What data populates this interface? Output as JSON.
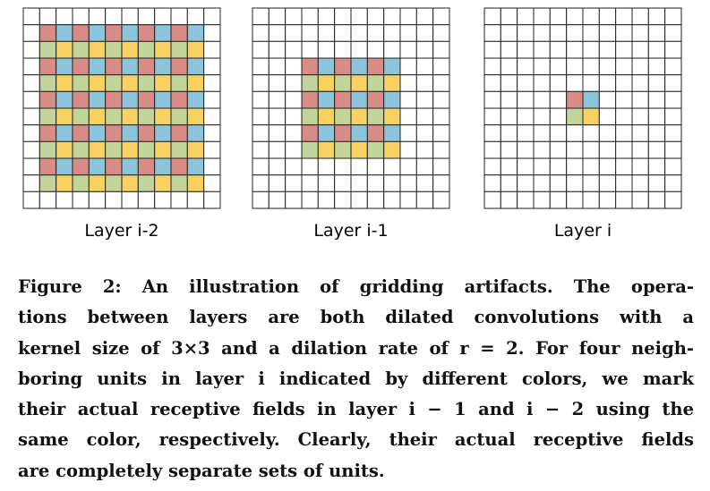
{
  "colors": {
    "red": "#d98b86",
    "blue": "#8cc5db",
    "green": "#c3d49a",
    "yellow": "#f7d161",
    "grid_line": "#222222",
    "empty": "#ffffff"
  },
  "panels": [
    {
      "label": "Layer i-2",
      "rows": 12,
      "cols": 12,
      "colored_rows": [
        1,
        10
      ],
      "colored_cols": [
        1,
        10
      ]
    },
    {
      "label": "Layer i-1",
      "rows": 12,
      "cols": 12,
      "colored_rows": [
        3,
        8
      ],
      "colored_cols": [
        3,
        8
      ]
    },
    {
      "label": "Layer i",
      "rows": 12,
      "cols": 12,
      "colored_rows": [
        5,
        6
      ],
      "colored_cols": [
        5,
        6
      ]
    }
  ],
  "caption": {
    "lines": [
      "Figure 2: An illustration of gridding artifacts. The opera-",
      "tions between layers are both dilated convolutions with a",
      "kernel size of 3×3 and a dilation rate of r = 2. For four neigh-",
      "boring units in layer i indicated by different colors, we mark",
      "their actual receptive fields in layer i − 1 and i − 2 using the",
      "same color, respectively. Clearly, their actual receptive fields",
      "are completely separate sets of units."
    ]
  }
}
